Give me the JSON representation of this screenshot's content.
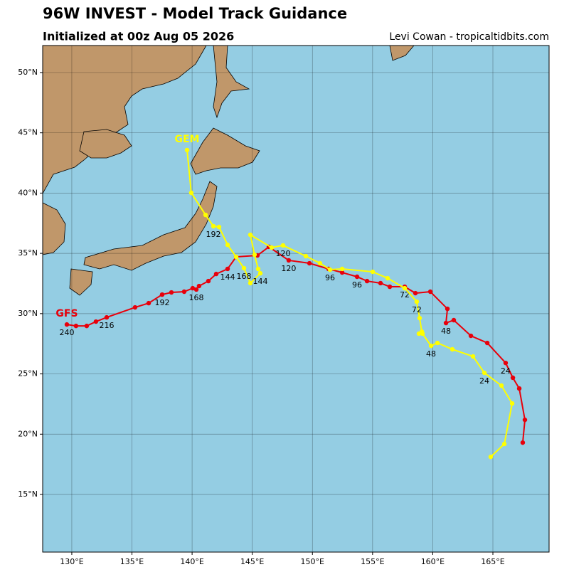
{
  "chart_data": {
    "type": "line",
    "title": "96W INVEST - Model Track Guidance",
    "subtitle": "Initialized at 00z Aug 05 2026",
    "credit": "Levi Cowan - tropicaltidbits.com",
    "xlim": [
      127.58,
      169.67
    ],
    "ylim": [
      10.22,
      52.24
    ],
    "xticks": [
      {
        "value": 130,
        "label": "130°E"
      },
      {
        "value": 135,
        "label": "135°E"
      },
      {
        "value": 140,
        "label": "140°E"
      },
      {
        "value": 145,
        "label": "145°E"
      },
      {
        "value": 150,
        "label": "150°E"
      },
      {
        "value": 155,
        "label": "155°E"
      },
      {
        "value": 160,
        "label": "160°E"
      },
      {
        "value": 165,
        "label": "165°E"
      }
    ],
    "yticks": [
      {
        "value": 15,
        "label": "15°N"
      },
      {
        "value": 20,
        "label": "20°N"
      },
      {
        "value": 25,
        "label": "25°N"
      },
      {
        "value": 30,
        "label": "30°N"
      },
      {
        "value": 35,
        "label": "35°N"
      },
      {
        "value": 40,
        "label": "40°N"
      },
      {
        "value": 45,
        "label": "45°N"
      },
      {
        "value": 50,
        "label": "50°N"
      }
    ],
    "grid": true,
    "series": [
      {
        "name": "GFS",
        "color": "#e8000b",
        "x": [
          167.48,
          167.66,
          167.19,
          166.66,
          166.06,
          164.53,
          163.17,
          161.75,
          161.1,
          161.22,
          159.8,
          158.56,
          157.67,
          156.43,
          155.66,
          154.54,
          153.71,
          152.47,
          151.34,
          149.75,
          148.03,
          146.38,
          145.43,
          143.66,
          142.95,
          142.0,
          141.35,
          140.58,
          140.35,
          140.05,
          139.34,
          138.28,
          137.51,
          136.39,
          135.26,
          132.9,
          132.01,
          131.24,
          130.35,
          129.59
        ],
        "values": [
          19.3,
          21.19,
          23.79,
          24.68,
          25.91,
          27.57,
          28.16,
          29.46,
          29.22,
          30.4,
          31.82,
          31.7,
          32.23,
          32.23,
          32.53,
          32.7,
          33.06,
          33.41,
          33.71,
          34.18,
          34.42,
          35.54,
          34.83,
          34.71,
          33.71,
          33.29,
          32.7,
          32.29,
          32.0,
          32.11,
          31.82,
          31.76,
          31.58,
          30.87,
          30.52,
          29.69,
          29.34,
          28.98,
          28.98,
          29.1
        ],
        "point_labels": [
          null,
          null,
          null,
          null,
          "24",
          null,
          null,
          null,
          "48",
          null,
          null,
          null,
          "72",
          null,
          null,
          null,
          "96",
          null,
          null,
          null,
          "120",
          null,
          null,
          null,
          "144",
          null,
          null,
          null,
          "168",
          null,
          null,
          null,
          "192",
          null,
          null,
          "216",
          null,
          null,
          null,
          "240"
        ]
      },
      {
        "name": "GEM",
        "color": "#ffff00",
        "x": [
          164.82,
          165.95,
          166.6,
          165.71,
          164.29,
          163.35,
          161.63,
          160.39,
          159.86,
          159.15,
          158.85,
          159.09,
          158.91,
          158.67,
          157.67,
          156.25,
          155.01,
          152.47,
          151.46,
          150.63,
          149.45,
          147.56,
          146.61,
          144.84,
          145.19,
          145.49,
          145.67,
          144.84,
          144.31,
          143.66,
          142.95,
          142.24,
          141.77,
          141.12,
          139.93,
          139.58
        ],
        "values": [
          18.12,
          19.19,
          22.55,
          24.03,
          25.09,
          26.45,
          27.04,
          27.57,
          27.33,
          28.34,
          28.34,
          28.51,
          29.63,
          30.99,
          32.11,
          32.94,
          33.47,
          33.71,
          33.65,
          34.18,
          34.77,
          35.66,
          35.48,
          36.54,
          34.89,
          33.71,
          33.35,
          32.53,
          33.77,
          34.71,
          35.71,
          37.19,
          37.25,
          38.19,
          40.02,
          43.57
        ],
        "point_labels": [
          null,
          null,
          null,
          null,
          "24",
          null,
          null,
          null,
          "48",
          null,
          null,
          null,
          null,
          "72",
          null,
          null,
          null,
          null,
          "96",
          null,
          null,
          "120",
          null,
          null,
          null,
          null,
          "144",
          null,
          "168",
          null,
          null,
          null,
          "192",
          null,
          null,
          null
        ]
      }
    ]
  }
}
